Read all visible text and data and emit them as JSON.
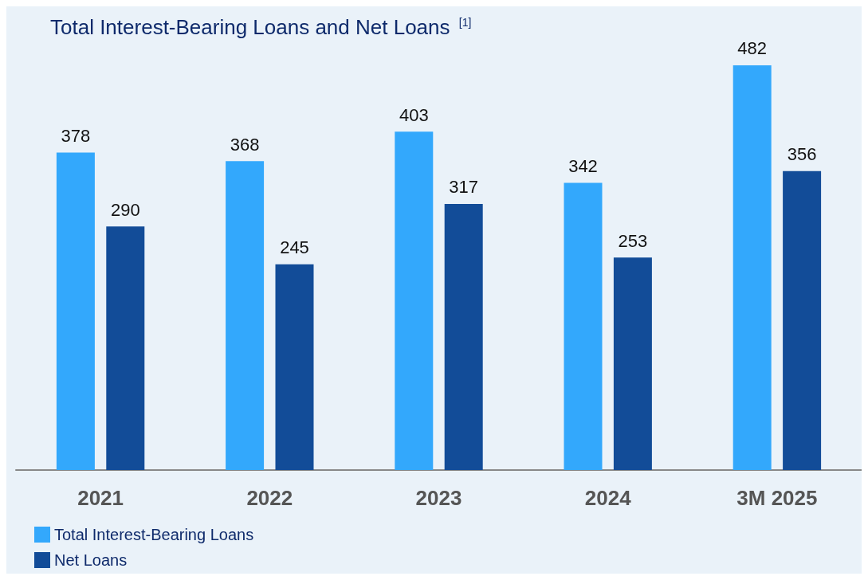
{
  "chart_data": {
    "type": "bar",
    "title": "Total Interest-Bearing Loans and Net Loans $^{[1]}$",
    "categories": [
      "2021",
      "2022",
      "2023",
      "2024",
      "3M 2025"
    ],
    "series": [
      {
        "name": "Total Interest-Bearing Loans",
        "color": "#33a8fc",
        "values": [
          378,
          368,
          403,
          342,
          482
        ]
      },
      {
        "name": "Net Loans",
        "color": "#124c98",
        "values": [
          290,
          245,
          317,
          253,
          356
        ]
      }
    ],
    "data_labels": true,
    "legend": "bottom left"
  }
}
